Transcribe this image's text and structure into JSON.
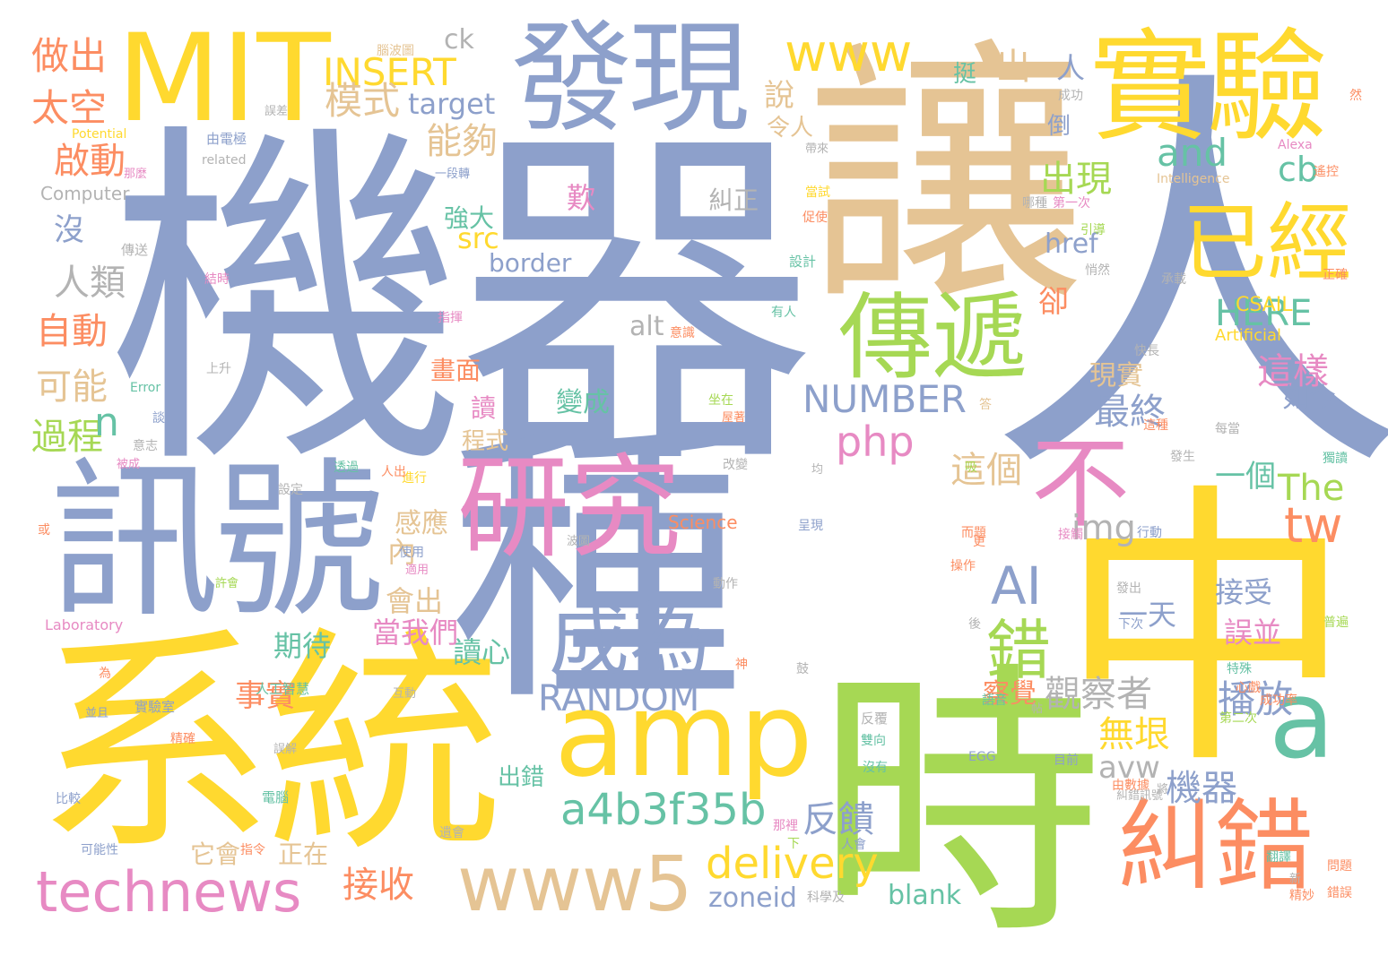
{
  "palette": {
    "blue": "#8da0cb",
    "tan": "#e5c494",
    "yellow": "#ffd92f",
    "green": "#a6d854",
    "pink": "#e78ac3",
    "orange": "#fc8d62",
    "teal": "#66c2a5",
    "gray": "#b3b3b3"
  },
  "words": [
    {
      "text": "機器",
      "color": "blue"
    },
    {
      "text": "人",
      "color": "blue"
    },
    {
      "text": "讓",
      "color": "tan"
    },
    {
      "text": "中",
      "color": "yellow"
    },
    {
      "text": "系統",
      "color": "yellow"
    },
    {
      "text": "種",
      "color": "blue"
    },
    {
      "text": "時",
      "color": "green"
    },
    {
      "text": "訊號",
      "color": "blue"
    },
    {
      "text": "MIT",
      "color": "yellow"
    },
    {
      "text": "發現",
      "color": "blue"
    },
    {
      "text": "實驗",
      "color": "yellow"
    },
    {
      "text": "研究",
      "color": "pink"
    },
    {
      "text": "amp",
      "color": "yellow"
    },
    {
      "text": "傳遞",
      "color": "green"
    },
    {
      "text": "已經",
      "color": "yellow"
    },
    {
      "text": "不",
      "color": "pink"
    },
    {
      "text": "a",
      "color": "teal"
    },
    {
      "text": "糾錯",
      "color": "orange"
    },
    {
      "text": "成為",
      "color": "blue"
    },
    {
      "text": "www5",
      "color": "tan"
    },
    {
      "text": "technews",
      "color": "pink"
    },
    {
      "text": "AI",
      "color": "blue"
    },
    {
      "text": "錯",
      "color": "green"
    },
    {
      "text": "www",
      "color": "yellow"
    },
    {
      "text": "delivery",
      "color": "yellow"
    },
    {
      "text": "a4b3f35b",
      "color": "teal"
    },
    {
      "text": "RANDOM",
      "color": "blue"
    },
    {
      "text": "NUMBER",
      "color": "blue"
    },
    {
      "text": "INSERT",
      "color": "yellow"
    },
    {
      "text": "php",
      "color": "pink"
    },
    {
      "text": "tw",
      "color": "orange"
    },
    {
      "text": "觀察者",
      "color": "gray"
    },
    {
      "text": "播放",
      "color": "blue"
    },
    {
      "text": "做出",
      "color": "orange"
    },
    {
      "text": "太空",
      "color": "orange"
    },
    {
      "text": "啟動",
      "color": "orange"
    },
    {
      "text": "人類",
      "color": "gray"
    },
    {
      "text": "自動",
      "color": "orange"
    },
    {
      "text": "可能",
      "color": "tan"
    },
    {
      "text": "過程",
      "color": "green"
    },
    {
      "text": "模式",
      "color": "tan"
    },
    {
      "text": "能夠",
      "color": "tan"
    },
    {
      "text": "target",
      "color": "blue"
    },
    {
      "text": "ck",
      "color": "gray"
    },
    {
      "text": "and",
      "color": "teal"
    },
    {
      "text": "cb",
      "color": "teal"
    },
    {
      "text": "border",
      "color": "blue"
    },
    {
      "text": "src",
      "color": "yellow"
    },
    {
      "text": "HERE",
      "color": "teal"
    },
    {
      "text": "The",
      "color": "green"
    },
    {
      "text": "img",
      "color": "gray"
    },
    {
      "text": "alt",
      "color": "gray"
    },
    {
      "text": "href",
      "color": "blue"
    },
    {
      "text": "blank",
      "color": "teal"
    },
    {
      "text": "zoneid",
      "color": "blue"
    },
    {
      "text": "avw",
      "color": "gray"
    },
    {
      "text": "接收",
      "color": "orange"
    },
    {
      "text": "反饋",
      "color": "blue"
    },
    {
      "text": "機器",
      "color": "blue"
    },
    {
      "text": "無垠",
      "color": "yellow"
    },
    {
      "text": "這個",
      "color": "tan"
    },
    {
      "text": "最終",
      "color": "blue"
    },
    {
      "text": "出現",
      "color": "green"
    },
    {
      "text": "出",
      "color": "tan"
    },
    {
      "text": "人",
      "color": "blue"
    },
    {
      "text": "說",
      "color": "tan"
    },
    {
      "text": "卻",
      "color": "orange"
    },
    {
      "text": "這樣",
      "color": "pink"
    },
    {
      "text": "如今",
      "color": "blue"
    },
    {
      "text": "現實",
      "color": "tan"
    },
    {
      "text": "接受",
      "color": "blue"
    },
    {
      "text": "一天",
      "color": "blue"
    },
    {
      "text": "誤並",
      "color": "pink"
    },
    {
      "text": "一個",
      "color": "teal"
    },
    {
      "text": "讀心",
      "color": "teal"
    },
    {
      "text": "當我們",
      "color": "pink"
    },
    {
      "text": "期待",
      "color": "teal"
    },
    {
      "text": "事實",
      "color": "orange"
    },
    {
      "text": "會出",
      "color": "tan"
    },
    {
      "text": "感應",
      "color": "tan"
    },
    {
      "text": "內",
      "color": "tan"
    },
    {
      "text": "強大",
      "color": "teal"
    },
    {
      "text": "出錯",
      "color": "teal"
    },
    {
      "text": "正在",
      "color": "tan"
    },
    {
      "text": "它會",
      "color": "tan"
    },
    {
      "text": "畫面",
      "color": "orange"
    },
    {
      "text": "程式",
      "color": "tan"
    },
    {
      "text": "讀",
      "color": "pink"
    },
    {
      "text": "變成",
      "color": "teal"
    },
    {
      "text": "歎",
      "color": "pink"
    },
    {
      "text": "糾正",
      "color": "gray"
    },
    {
      "text": "察覺",
      "color": "orange"
    },
    {
      "text": "令人",
      "color": "tan"
    },
    {
      "text": "倒",
      "color": "blue"
    },
    {
      "text": "挺",
      "color": "teal"
    },
    {
      "text": "沒",
      "color": "blue"
    },
    {
      "text": "n",
      "color": "teal"
    },
    {
      "text": "CSAIL",
      "color": "yellow"
    },
    {
      "text": "Artificial",
      "color": "yellow"
    },
    {
      "text": "Science",
      "color": "orange"
    },
    {
      "text": "Computer",
      "color": "gray"
    },
    {
      "text": "Laboratory",
      "color": "pink"
    },
    {
      "text": "Intelligence",
      "color": "tan"
    },
    {
      "text": "Alexa",
      "color": "pink"
    },
    {
      "text": "Potential",
      "color": "yellow"
    },
    {
      "text": "related",
      "color": "gray"
    },
    {
      "text": "Error",
      "color": "teal"
    },
    {
      "text": "EGG",
      "color": "blue"
    },
    {
      "text": "人工智慧",
      "color": "teal"
    },
    {
      "text": "實驗室",
      "color": "blue"
    },
    {
      "text": "成功率",
      "color": "orange"
    },
    {
      "text": "由電極",
      "color": "blue"
    },
    {
      "text": "傳送",
      "color": "gray"
    },
    {
      "text": "設計",
      "color": "teal"
    },
    {
      "text": "意識",
      "color": "orange"
    },
    {
      "text": "指揮",
      "color": "pink"
    },
    {
      "text": "有人",
      "color": "teal"
    },
    {
      "text": "改變",
      "color": "gray"
    },
    {
      "text": "透過",
      "color": "teal"
    },
    {
      "text": "進行",
      "color": "yellow"
    },
    {
      "text": "發生",
      "color": "gray"
    },
    {
      "text": "第一次",
      "color": "pink"
    },
    {
      "text": "第二次",
      "color": "green"
    },
    {
      "text": "每當",
      "color": "gray"
    },
    {
      "text": "這種",
      "color": "orange"
    },
    {
      "text": "行動",
      "color": "blue"
    },
    {
      "text": "操作",
      "color": "orange"
    },
    {
      "text": "使用",
      "color": "blue"
    },
    {
      "text": "動作",
      "color": "gray"
    },
    {
      "text": "發出",
      "color": "gray"
    },
    {
      "text": "下次",
      "color": "blue"
    },
    {
      "text": "語音",
      "color": "teal"
    },
    {
      "text": "反覆",
      "color": "gray"
    },
    {
      "text": "雙向",
      "color": "teal"
    },
    {
      "text": "沒有",
      "color": "teal"
    },
    {
      "text": "目前",
      "color": "blue"
    },
    {
      "text": "由數據",
      "color": "orange"
    },
    {
      "text": "糾錯訊號",
      "color": "gray"
    },
    {
      "text": "電腦",
      "color": "teal"
    },
    {
      "text": "精確",
      "color": "orange"
    },
    {
      "text": "比較",
      "color": "blue"
    },
    {
      "text": "可能性",
      "color": "blue"
    },
    {
      "text": "指令",
      "color": "orange"
    },
    {
      "text": "那裡",
      "color": "pink"
    },
    {
      "text": "人會",
      "color": "blue"
    },
    {
      "text": "科學及",
      "color": "gray"
    },
    {
      "text": "精妙",
      "color": "orange"
    },
    {
      "text": "翻譯",
      "color": "teal"
    },
    {
      "text": "問題",
      "color": "orange"
    },
    {
      "text": "錯誤",
      "color": "orange"
    },
    {
      "text": "普遍",
      "color": "green"
    },
    {
      "text": "特殊",
      "color": "teal"
    },
    {
      "text": "心戲",
      "color": "orange"
    },
    {
      "text": "獨讀",
      "color": "teal"
    },
    {
      "text": "成功",
      "color": "gray"
    },
    {
      "text": "引導",
      "color": "green"
    },
    {
      "text": "承載",
      "color": "gray"
    },
    {
      "text": "遙控",
      "color": "orange"
    },
    {
      "text": "悄然",
      "color": "gray"
    },
    {
      "text": "正確",
      "color": "orange"
    },
    {
      "text": "快長",
      "color": "gray"
    },
    {
      "text": "上升",
      "color": "gray"
    },
    {
      "text": "當試",
      "color": "yellow"
    },
    {
      "text": "促使",
      "color": "orange"
    },
    {
      "text": "哪種",
      "color": "gray"
    },
    {
      "text": "坐在",
      "color": "green"
    },
    {
      "text": "屋著",
      "color": "orange"
    },
    {
      "text": "帶來",
      "color": "gray"
    },
    {
      "text": "意志",
      "color": "gray"
    },
    {
      "text": "被成",
      "color": "pink"
    },
    {
      "text": "互動",
      "color": "gray"
    },
    {
      "text": "而題",
      "color": "orange"
    },
    {
      "text": "接觸",
      "color": "pink"
    },
    {
      "text": "遺會",
      "color": "gray"
    },
    {
      "text": "設定",
      "color": "gray"
    },
    {
      "text": "適用",
      "color": "pink"
    },
    {
      "text": "鼓",
      "color": "gray"
    },
    {
      "text": "腦波圖",
      "color": "tan"
    },
    {
      "text": "波圖",
      "color": "gray"
    },
    {
      "text": "人出",
      "color": "orange"
    },
    {
      "text": "一段轉",
      "color": "blue"
    },
    {
      "text": "那麼",
      "color": "pink"
    },
    {
      "text": "均",
      "color": "gray"
    },
    {
      "text": "然",
      "color": "orange"
    },
    {
      "text": "許會",
      "color": "green"
    },
    {
      "text": "後",
      "color": "gray"
    },
    {
      "text": "為",
      "color": "orange"
    },
    {
      "text": "並且",
      "color": "blue"
    },
    {
      "text": "神",
      "color": "orange"
    },
    {
      "text": "談",
      "color": "blue"
    },
    {
      "text": "答",
      "color": "tan"
    },
    {
      "text": "吸",
      "color": "green"
    },
    {
      "text": "下",
      "color": "green"
    },
    {
      "text": "更",
      "color": "orange"
    },
    {
      "text": "新",
      "color": "gray"
    },
    {
      "text": "帖",
      "color": "gray"
    },
    {
      "text": "誤差",
      "color": "gray"
    },
    {
      "text": "結時",
      "color": "pink"
    },
    {
      "text": "呈現",
      "color": "blue"
    },
    {
      "text": "或",
      "color": "orange"
    },
    {
      "text": "將",
      "color": "gray"
    },
    {
      "text": "誤解",
      "color": "gray"
    }
  ]
}
